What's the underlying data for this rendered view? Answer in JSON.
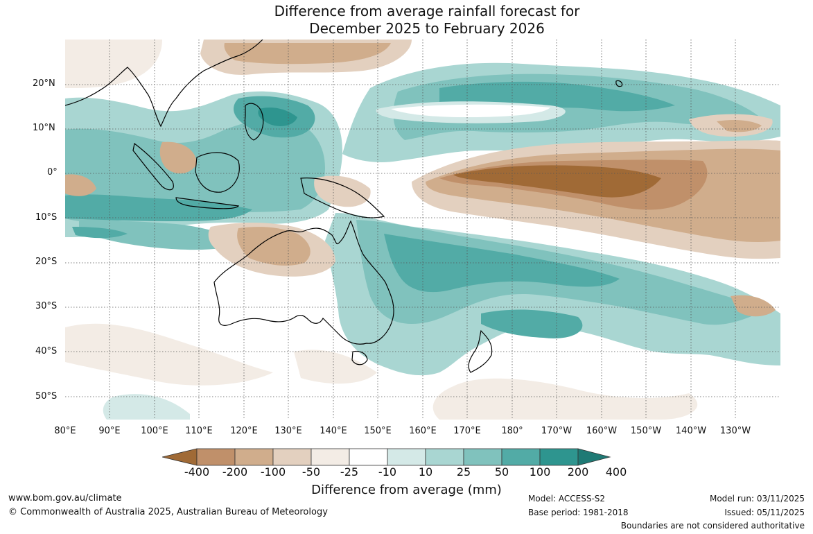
{
  "title": {
    "line1": "Difference from average rainfall forecast for",
    "line2": "December 2025 to February 2026"
  },
  "map": {
    "latitudes": [
      "20°N",
      "10°N",
      "0°",
      "10°S",
      "20°S",
      "30°S",
      "40°S",
      "50°S"
    ],
    "longitudes": [
      "80°E",
      "90°E",
      "100°E",
      "110°E",
      "120°E",
      "130°E",
      "140°E",
      "150°E",
      "160°E",
      "170°E",
      "180°",
      "170°W",
      "160°W",
      "150°W",
      "140°W",
      "130°W"
    ]
  },
  "legend": {
    "ticks": [
      "-400",
      "-200",
      "-100",
      "-50",
      "-25",
      "-10",
      "10",
      "25",
      "50",
      "100",
      "200",
      "400"
    ],
    "colors": [
      "#a06a36",
      "#c0906a",
      "#d0ad8c",
      "#e3d0bf",
      "#f3ece5",
      "#ffffff",
      "#d4e9e7",
      "#a9d6d2",
      "#80c2bd",
      "#52aba6",
      "#2e958f",
      "#1f7a75"
    ],
    "label": "Difference from average (mm)"
  },
  "footer": {
    "url": "www.bom.gov.au/climate",
    "copyright": "© Commonwealth of Australia 2025, Australian Bureau of Meteorology",
    "model": "Model: ACCESS-S2",
    "base_period": "Base period: 1981-2018",
    "model_run": "Model run: 03/11/2025",
    "issued": "Issued: 05/11/2025",
    "disclaimer": "Boundaries are not considered authoritative"
  }
}
